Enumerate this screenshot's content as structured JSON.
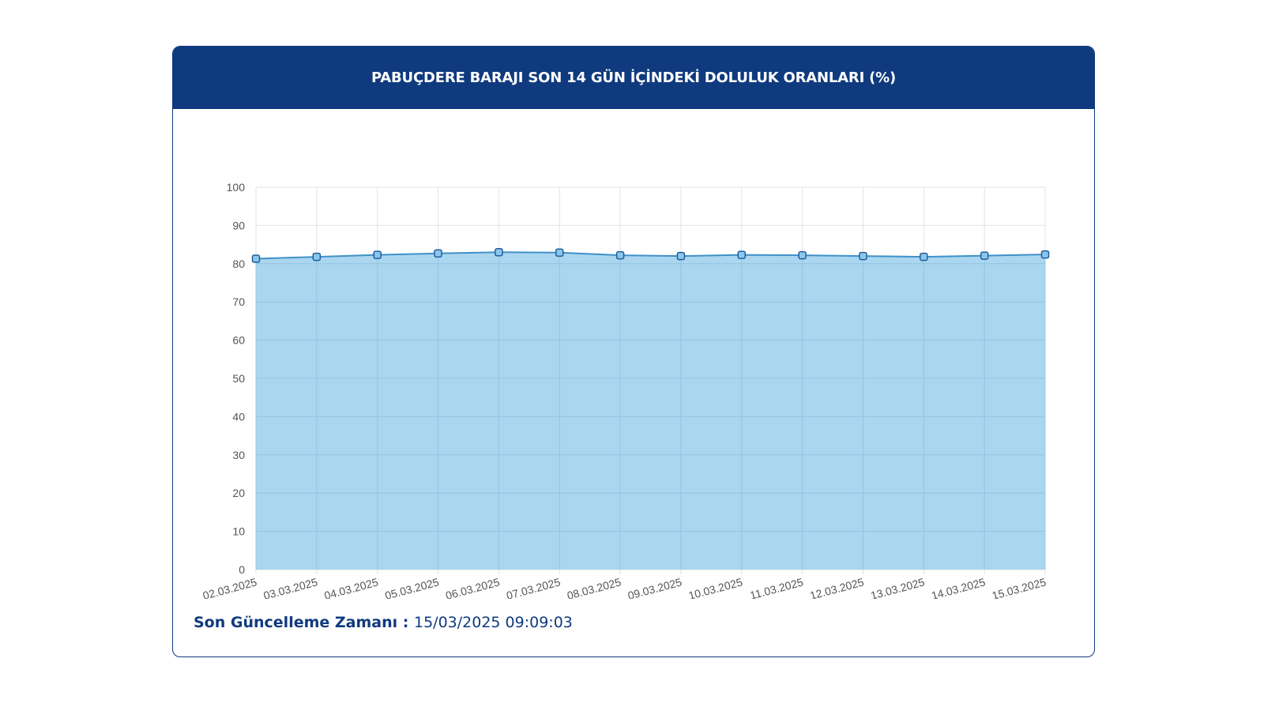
{
  "header": {
    "title": "PABUÇDERE BARAJI SON 14 GÜN İÇİNDEKİ DOLULUK ORANLARI (%)"
  },
  "footer": {
    "label": "Son Güncelleme Zamanı",
    "separator": " : ",
    "value": "15/03/2025 09:09:03"
  },
  "colors": {
    "header_bg": "#0f3a7e",
    "area_fill": "#9ccfec",
    "line": "#3f91c9",
    "marker": "#1f5f9e"
  },
  "chart_data": {
    "type": "area",
    "title": "",
    "xlabel": "",
    "ylabel": "",
    "categories": [
      "02.03.2025",
      "03.03.2025",
      "04.03.2025",
      "05.03.2025",
      "06.03.2025",
      "07.03.2025",
      "08.03.2025",
      "09.03.2025",
      "10.03.2025",
      "11.03.2025",
      "12.03.2025",
      "13.03.2025",
      "14.03.2025",
      "15.03.2025"
    ],
    "values": [
      81.3,
      81.8,
      82.3,
      82.7,
      83.0,
      82.9,
      82.2,
      82.0,
      82.3,
      82.2,
      82.0,
      81.8,
      82.1,
      82.4
    ],
    "ylim": [
      0,
      100
    ],
    "yticks": [
      0,
      10,
      20,
      30,
      40,
      50,
      60,
      70,
      80,
      90,
      100
    ],
    "grid": true,
    "legend": "none"
  }
}
